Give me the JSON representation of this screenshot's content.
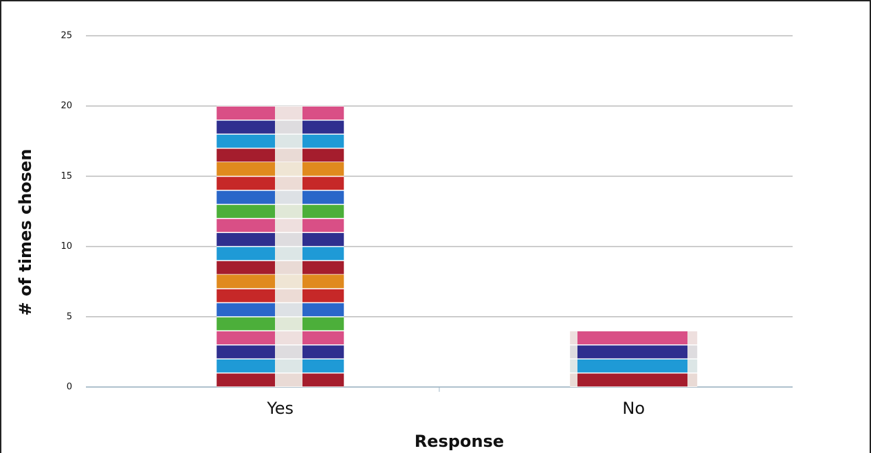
{
  "chart_data": {
    "type": "bar",
    "categories": [
      "Yes",
      "No"
    ],
    "values": [
      20,
      4
    ],
    "xlabel": "Response",
    "ylabel": "# of times chosen",
    "ylim": [
      0,
      25
    ],
    "yticks": [
      0,
      5,
      10,
      15,
      20,
      25
    ],
    "grid": true
  }
}
